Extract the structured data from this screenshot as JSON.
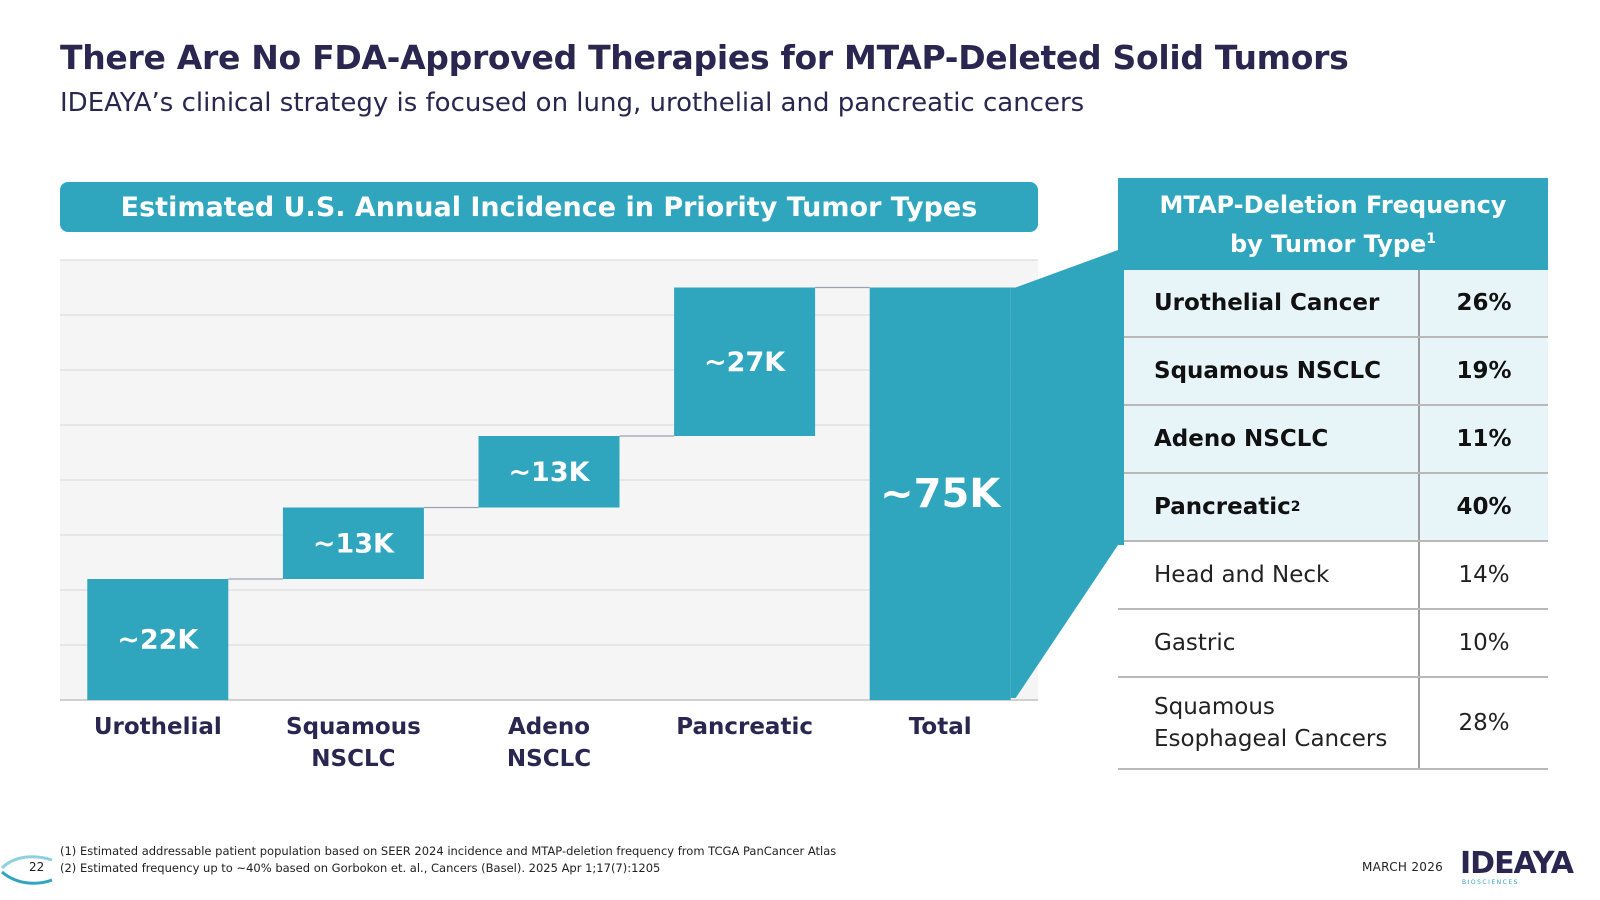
{
  "title": "There Are No FDA-Approved Therapies for MTAP-Deleted Solid Tumors",
  "subtitle": "IDEAYA’s clinical strategy is focused on lung, urothelial and pancreatic cancers",
  "chart_header": "Estimated U.S. Annual Incidence in Priority Tumor Types",
  "chart_data": {
    "type": "bar",
    "subtype": "waterfall",
    "title": "Estimated U.S. Annual Incidence in Priority Tumor Types",
    "categories": [
      "Urothelial",
      "Squamous NSCLC",
      "Adeno NSCLC",
      "Pancreatic",
      "Total"
    ],
    "category_lines": [
      [
        "Urothelial"
      ],
      [
        "Squamous",
        "NSCLC"
      ],
      [
        "Adeno",
        "NSCLC"
      ],
      [
        "Pancreatic"
      ],
      [
        "Total"
      ]
    ],
    "values": [
      22,
      13,
      13,
      27,
      75
    ],
    "value_unit": "K",
    "labels": [
      "~22K",
      "~13K",
      "~13K",
      "~27K",
      "~75K"
    ],
    "ylim": [
      0,
      80
    ],
    "grid": true,
    "bar_color": "#2fa5be"
  },
  "table": {
    "header_line1": "MTAP-Deletion Frequency",
    "header_line2": "by Tumor Type",
    "header_sup": "1",
    "rows": [
      {
        "name": "Urothelial Cancer",
        "value": "26%",
        "highlight": true
      },
      {
        "name": "Squamous NSCLC",
        "value": "19%",
        "highlight": true
      },
      {
        "name": "Adeno NSCLC",
        "value": "11%",
        "highlight": true
      },
      {
        "name": "Pancreatic",
        "sup": "2",
        "value": "40%",
        "highlight": true
      },
      {
        "name": "Head and Neck",
        "value": "14%",
        "highlight": false
      },
      {
        "name": "Gastric",
        "value": "10%",
        "highlight": false
      },
      {
        "name": "Squamous Esophageal Cancers",
        "name_lines": [
          "Squamous",
          "Esophageal Cancers"
        ],
        "value": "28%",
        "highlight": false
      }
    ]
  },
  "footnotes": [
    "(1) Estimated addressable patient population based on SEER 2024 incidence and MTAP-deletion frequency from TCGA PanCancer Atlas",
    "(2) Estimated frequency up to ~40% based on Gorbokon et. al., Cancers (Basel). 2025 Apr 1;17(7):1205"
  ],
  "page_number": "22",
  "date": "MARCH 2026",
  "logo": {
    "text": "IDEAYA",
    "subtext": "BIOSCIENCES"
  },
  "colors": {
    "accent": "#2fa5be",
    "title": "#2a2650",
    "highlight_row": "#e8f5f8"
  }
}
